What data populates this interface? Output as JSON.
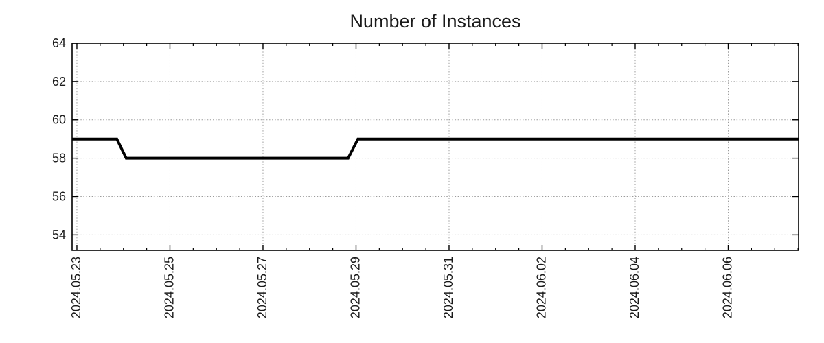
{
  "chart_data": {
    "type": "line",
    "title": "Number of Instances",
    "x_axis": {
      "unit": "days since 2024-05-23 00:00",
      "x_origin_label": "2024.05.23",
      "range": [
        -0.103,
        15.513
      ],
      "major_ticks": [
        0,
        2,
        4,
        6,
        8,
        10,
        12,
        14
      ],
      "major_tick_labels": [
        "2024.05.23",
        "2024.05.25",
        "2024.05.27",
        "2024.05.29",
        "2024.05.31",
        "2024.06.02",
        "2024.06.04",
        "2024.06.06"
      ],
      "minor_tick_interval": 0.5,
      "grid": true
    },
    "y_axis": {
      "range": [
        53.19,
        64.0
      ],
      "major_ticks": [
        54,
        56,
        58,
        60,
        62,
        64
      ],
      "major_tick_labels": [
        "54",
        "56",
        "58",
        "60",
        "62",
        "64"
      ],
      "grid": true
    },
    "series": [
      {
        "name": "instances",
        "color": "#000000",
        "line_width": 4,
        "points": [
          {
            "x": -0.103,
            "y": 59
          },
          {
            "x": 0.86,
            "y": 59
          },
          {
            "x": 1.06,
            "y": 58
          },
          {
            "x": 5.83,
            "y": 58
          },
          {
            "x": 6.04,
            "y": 59
          },
          {
            "x": 15.513,
            "y": 59
          }
        ]
      }
    ],
    "legend": {
      "visible": false
    },
    "styles": {
      "background": "#ffffff",
      "line_color": "#000000",
      "grid_color": "#9b9b9b",
      "axis_color": "#000000",
      "text_color": "#1a1a1a"
    }
  }
}
